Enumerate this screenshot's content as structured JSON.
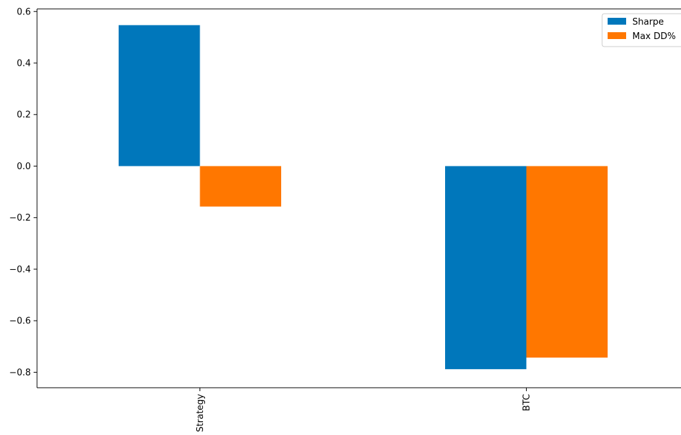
{
  "chart_data": {
    "type": "bar",
    "title": "",
    "xlabel": "",
    "ylabel": "",
    "categories": [
      "Strategy",
      "BTC"
    ],
    "series": [
      {
        "name": "Sharpe",
        "values": [
          0.547,
          -0.788
        ],
        "color": "#0077bb"
      },
      {
        "name": "Max DD%",
        "values": [
          -0.157,
          -0.743
        ],
        "color": "#ff7700"
      }
    ],
    "ylim": [
      -0.86,
      0.61
    ],
    "yticks": [
      {
        "value": 0.6,
        "label": "0.6"
      },
      {
        "value": 0.4,
        "label": "0.4"
      },
      {
        "value": 0.2,
        "label": "0.2"
      },
      {
        "value": 0.0,
        "label": "0.0"
      },
      {
        "value": -0.2,
        "label": "−0.2"
      },
      {
        "value": -0.4,
        "label": "−0.4"
      },
      {
        "value": -0.6,
        "label": "−0.6"
      },
      {
        "value": -0.8,
        "label": "−0.8"
      }
    ],
    "xtick_rotation": "vertical",
    "grid": false,
    "legend_position": "top-right"
  }
}
